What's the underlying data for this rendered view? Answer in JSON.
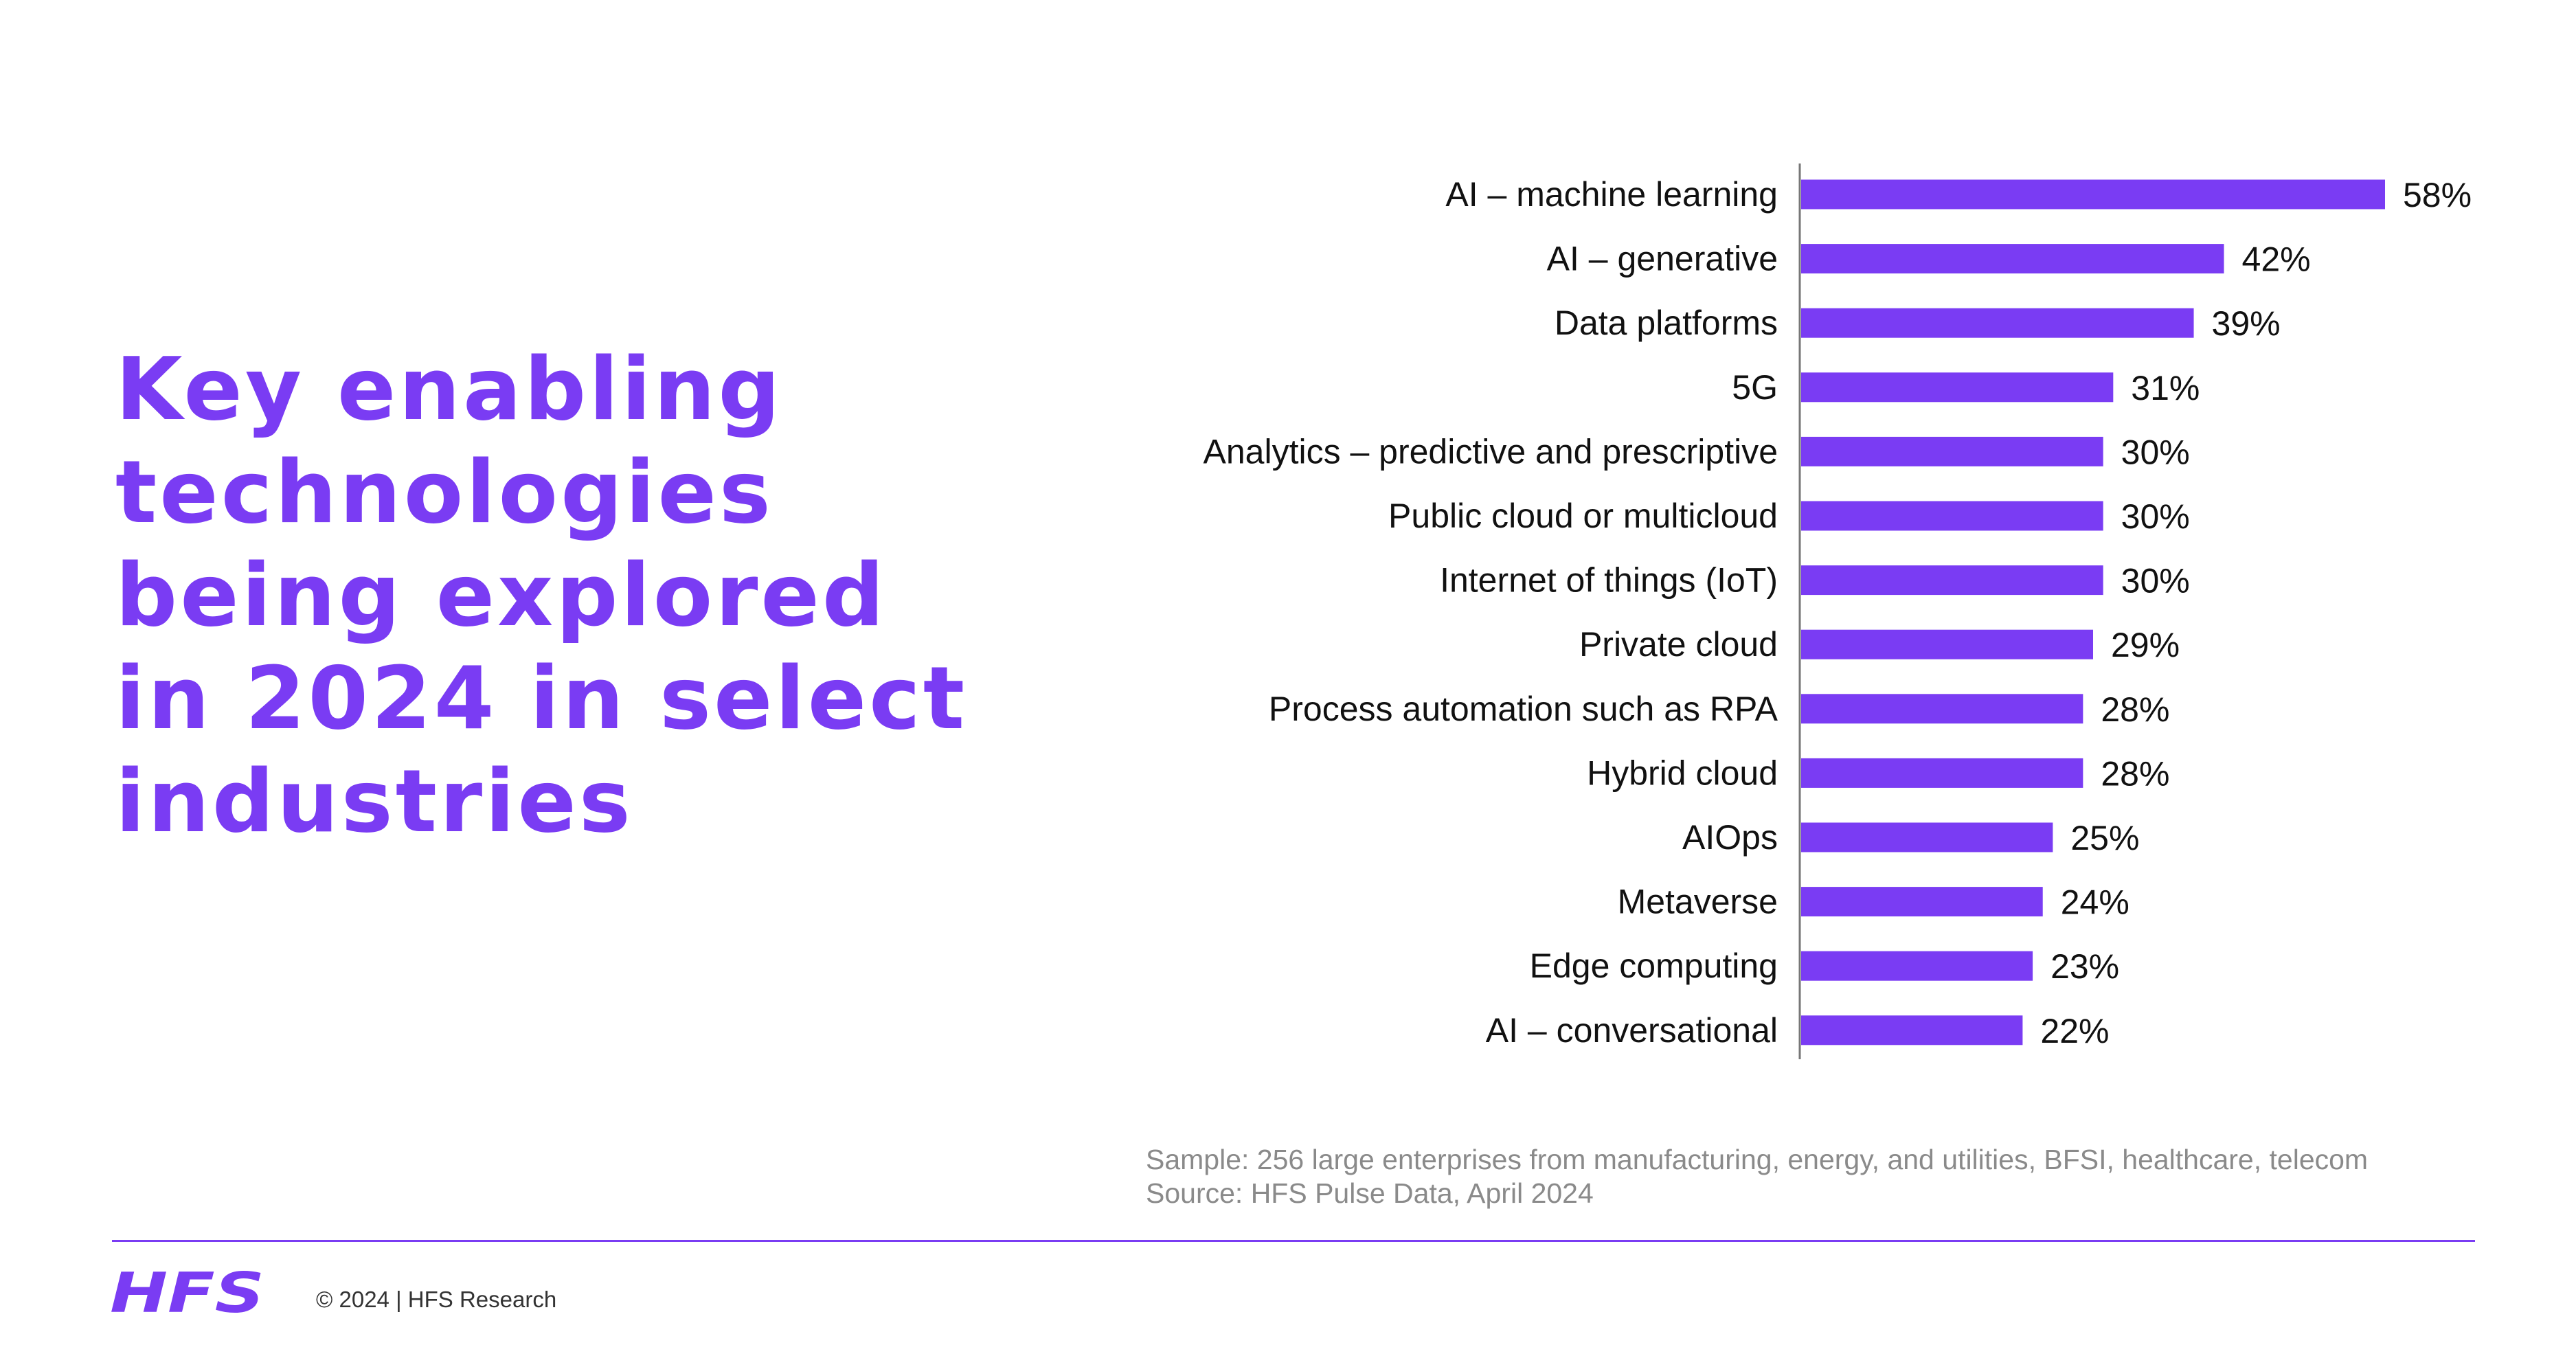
{
  "title_lines": [
    "Key enabling",
    "technologies",
    "being explored",
    "in 2024 in select",
    "industries"
  ],
  "chart_data": {
    "type": "bar",
    "orientation": "horizontal",
    "categories": [
      "AI – machine learning",
      "AI – generative",
      "Data platforms",
      "5G",
      "Analytics – predictive and prescriptive",
      "Public cloud or multicloud",
      "Internet of things (IoT)",
      "Private cloud",
      "Process automation such as RPA",
      "Hybrid cloud",
      "AIOps",
      "Metaverse",
      "Edge computing",
      "AI – conversational"
    ],
    "values": [
      58,
      42,
      39,
      31,
      30,
      30,
      30,
      29,
      28,
      28,
      25,
      24,
      23,
      22
    ],
    "value_labels": [
      "58%",
      "42%",
      "39%",
      "31%",
      "30%",
      "30%",
      "30%",
      "29%",
      "28%",
      "28%",
      "25%",
      "24%",
      "23%",
      "22%"
    ],
    "unit": "%",
    "xlim": [
      0,
      58
    ],
    "grid": false,
    "legend": "none",
    "bar_color": "#7a3cf3"
  },
  "notes": {
    "sample": "Sample: 256 large enterprises from manufacturing, energy, and utilities, BFSI, healthcare, telecom",
    "source": "Source: HFS Pulse Data, April 2024"
  },
  "footer": {
    "logo_text": "HFS",
    "copyright": "© 2024 | HFS Research"
  },
  "colors": {
    "accent": "#7a3cf3",
    "note_text": "#8a8a8a"
  }
}
